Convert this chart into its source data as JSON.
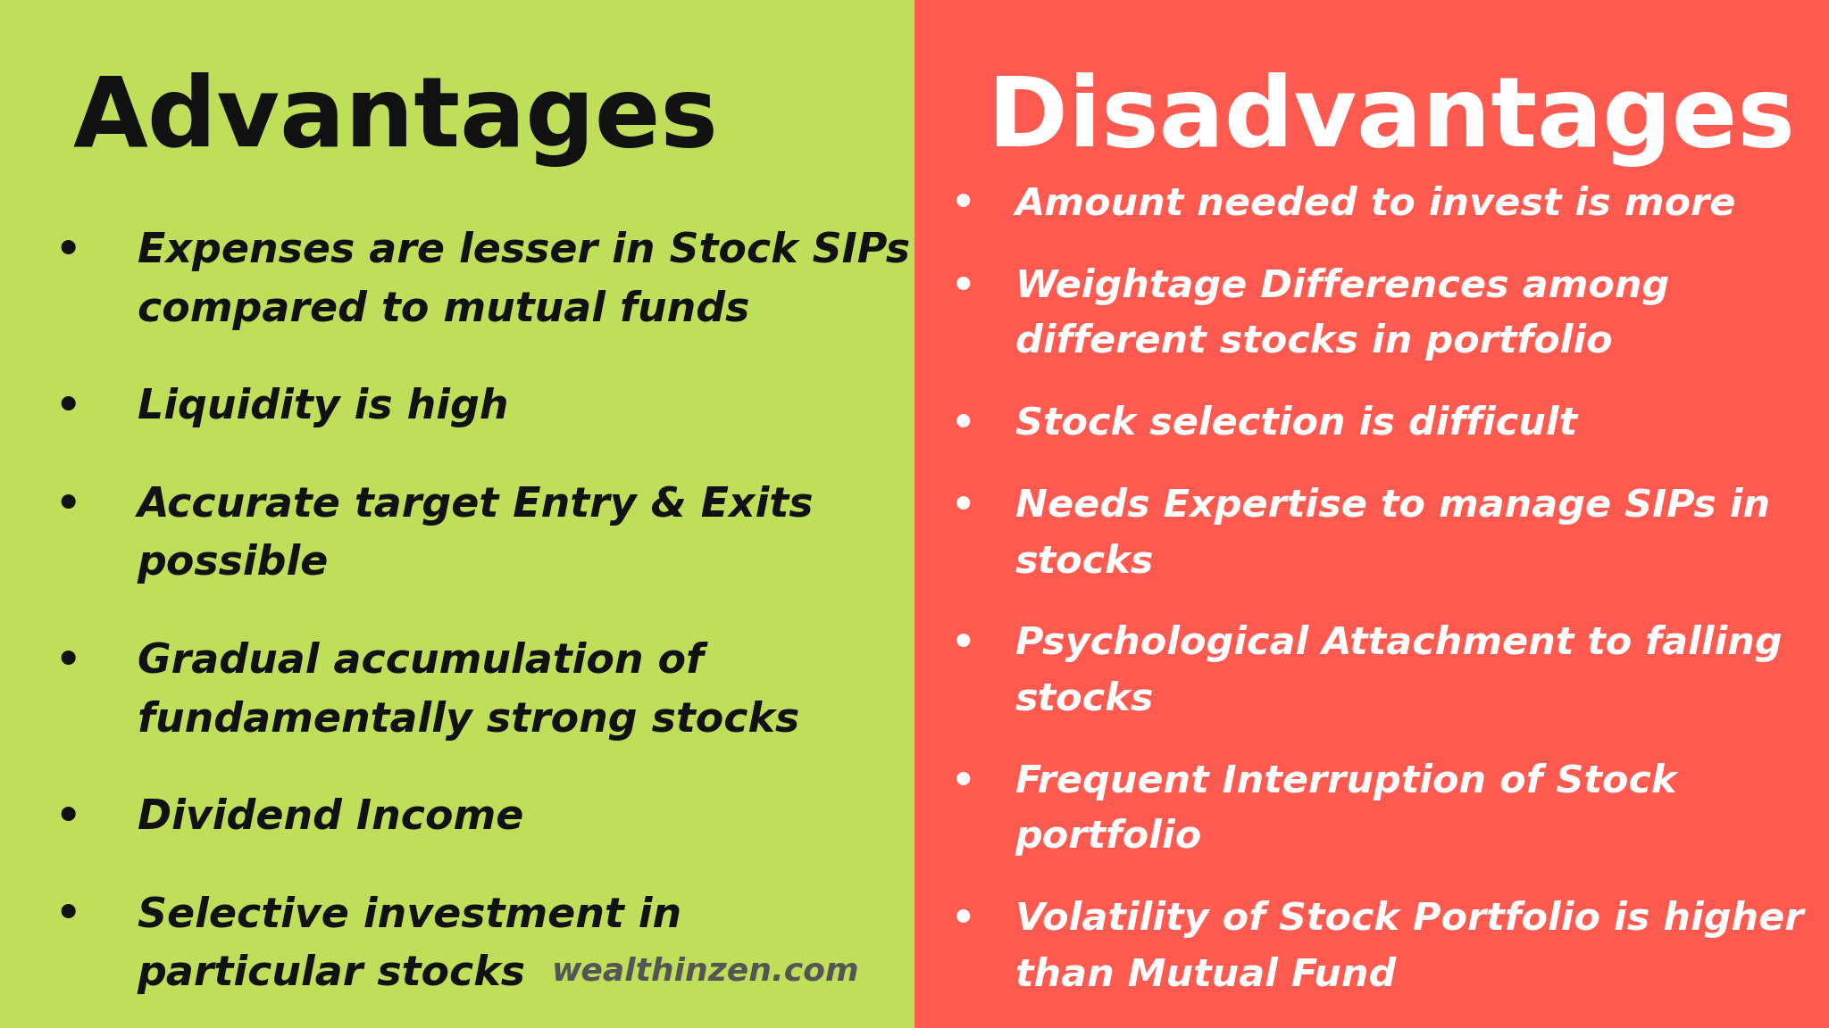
{
  "left_bg": "#bfdf5a",
  "right_bg": "#ff5a50",
  "left_title": "Advantages",
  "right_title": "Disadvantages",
  "left_title_color": "#111111",
  "right_title_color": "#ffffff",
  "left_text_color": "#111111",
  "right_text_color": "#ffffff",
  "watermark": "wealthinzen.com",
  "watermark_color": "#555555",
  "advantages": [
    "Expenses are lesser in Stock SIPs\ncompared to mutual funds",
    "Liquidity is high",
    "Accurate target Entry & Exits\npossible",
    "Gradual accumulation of\nfundamentally strong stocks",
    "Dividend Income",
    "Selective investment in\nparticular stocks"
  ],
  "disadvantages": [
    "Amount needed to invest is more",
    "Weightage Differences among\ndifferent stocks in portfolio",
    "Stock selection is difficult",
    "Needs Expertise to manage SIPs in\nstocks",
    "Psychological Attachment to falling\nstocks",
    "Frequent Interruption of Stock\nportfolio",
    "Volatility of Stock Portfolio is higher\nthan Mutual Fund"
  ],
  "fig_width": 20.48,
  "fig_height": 11.52,
  "dpi": 100
}
